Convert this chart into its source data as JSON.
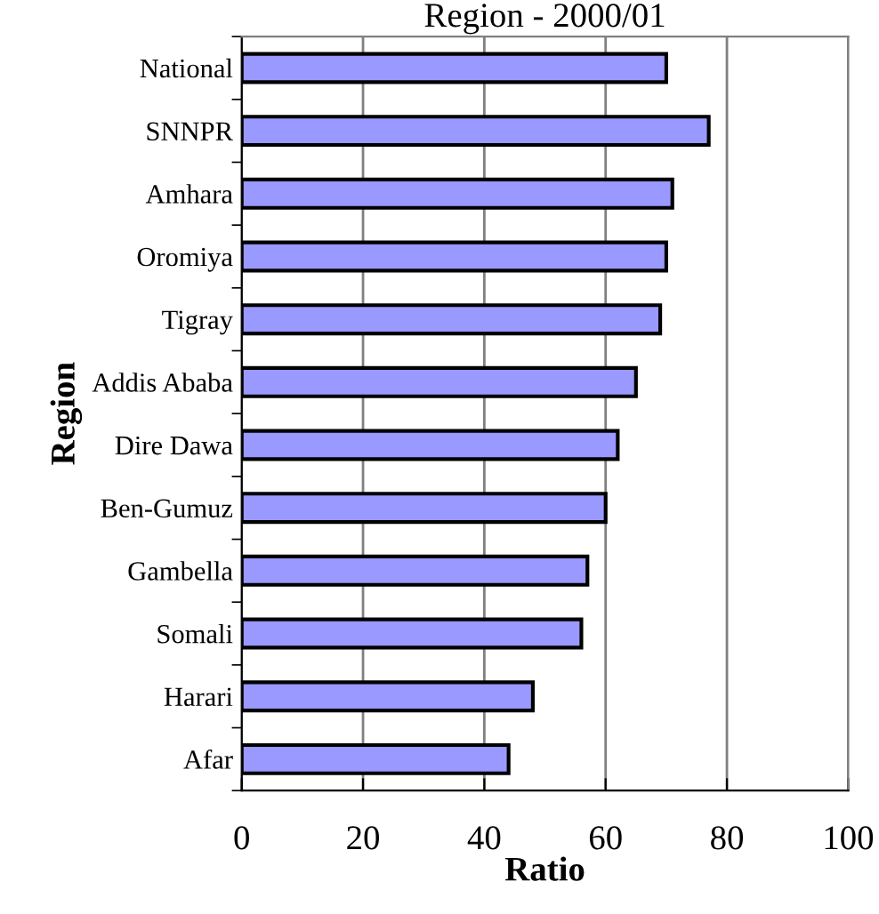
{
  "chart_data": {
    "type": "bar",
    "orientation": "horizontal",
    "title": "Region - 2000/01",
    "xlabel": "Ratio",
    "ylabel": "Region",
    "categories": [
      "National",
      "SNNPR",
      "Amhara",
      "Oromiya",
      "Tigray",
      "Addis Ababa",
      "Dire Dawa",
      "Ben-Gumuz",
      "Gambella",
      "Somali",
      "Harari",
      "Afar"
    ],
    "values": [
      70,
      77,
      71,
      70,
      69,
      65,
      62,
      60,
      57,
      56,
      48,
      44
    ],
    "color": "#9999ff",
    "xlim": [
      0,
      100
    ],
    "xticks": [
      0,
      20,
      40,
      60,
      80,
      100
    ],
    "grid": "x",
    "legend": false
  }
}
